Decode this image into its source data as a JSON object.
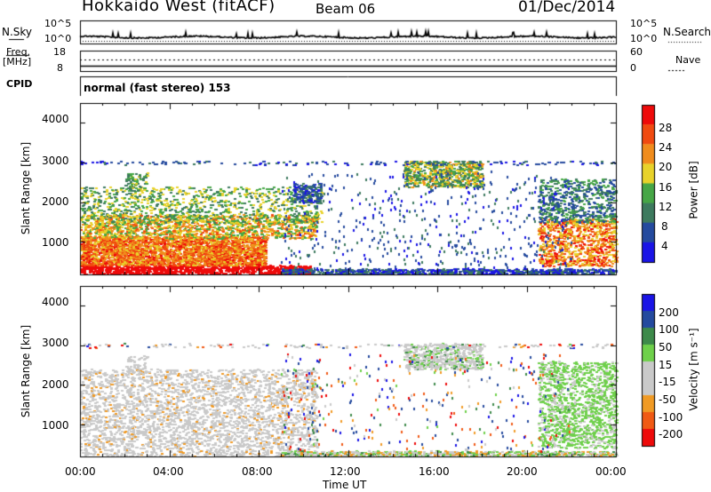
{
  "header": {
    "title": "Hokkaido West (fitACF)",
    "beam": "Beam 06",
    "date": "01/Dec/2014"
  },
  "top_panel": {
    "nsky_label": "N.Sky",
    "nsky_ticks": [
      "10^5",
      "10^0"
    ],
    "nsearch_label": "N.Search",
    "nsearch_ticks": [
      "10^5",
      "10^0"
    ],
    "freq_label_1": "Freq.",
    "freq_label_2": "[MHz]",
    "freq_ticks": [
      "18",
      "8"
    ],
    "nave_label": "Nave",
    "nave_ticks": [
      "60",
      "0"
    ],
    "cpid_label": "CPID",
    "cpid_text": "normal (fast stereo) 153"
  },
  "time_axis": {
    "label": "Time UT",
    "ticks": [
      "00:00",
      "04:00",
      "08:00",
      "12:00",
      "16:00",
      "20:00",
      "00:00"
    ]
  },
  "colors": {
    "power_scale": [
      "#1a14e6",
      "#244a9e",
      "#3d7a5e",
      "#46a646",
      "#e8d22a",
      "#f08c1c",
      "#f04a10",
      "#ee0a0a"
    ],
    "velocity_scale": [
      "#ee0a0a",
      "#f05a14",
      "#f09a24",
      "#c9c9c9",
      "#c9c9c9",
      "#6ed04a",
      "#3d8a4a",
      "#244a9e",
      "#1a14e6"
    ]
  },
  "chart_data": [
    {
      "type": "heatmap",
      "title": "",
      "xlabel": "Time UT",
      "ylabel": "Slant Range [km]",
      "xlim": [
        0,
        24
      ],
      "ylim": [
        180,
        4500
      ],
      "x_ticks": [
        "00:00",
        "04:00",
        "08:00",
        "12:00",
        "16:00",
        "20:00",
        "00:00"
      ],
      "y_ticks": [
        "1000",
        "2000",
        "3000",
        "4000"
      ],
      "colorbar": {
        "label": "Power [dB]",
        "ticks": [
          "4",
          "8",
          "12",
          "16",
          "20",
          "24",
          "28"
        ],
        "range": [
          0,
          32
        ]
      },
      "regions": [
        {
          "t": [
            0,
            10.5
          ],
          "r": [
            200,
            400
          ],
          "value": 28
        },
        {
          "t": [
            0,
            8.5
          ],
          "r": [
            400,
            1100
          ],
          "value": 23
        },
        {
          "t": [
            0,
            10.8
          ],
          "r": [
            1100,
            2400
          ],
          "value": 15
        },
        {
          "t": [
            2,
            3
          ],
          "r": [
            2400,
            2700
          ],
          "value": 12
        },
        {
          "t": [
            14.5,
            18
          ],
          "r": [
            2400,
            3050
          ],
          "value": 14
        },
        {
          "t": [
            20.5,
            24
          ],
          "r": [
            400,
            2600
          ],
          "value": 20
        },
        {
          "t": [
            9,
            24
          ],
          "r": [
            200,
            350
          ],
          "value": 6
        },
        {
          "t": [
            3.5,
            22
          ],
          "r": [
            2950,
            3050
          ],
          "value": 5
        }
      ]
    },
    {
      "type": "heatmap",
      "title": "",
      "xlabel": "Time UT",
      "ylabel": "Slant Range [km]",
      "xlim": [
        0,
        24
      ],
      "ylim": [
        180,
        4500
      ],
      "x_ticks": [
        "00:00",
        "04:00",
        "08:00",
        "12:00",
        "16:00",
        "20:00",
        "00:00"
      ],
      "y_ticks": [
        "1000",
        "2000",
        "3000",
        "4000"
      ],
      "colorbar": {
        "label": "Velocity [m s⁻¹]",
        "ticks": [
          "-200",
          "-100",
          "-50",
          "-15",
          "15",
          "50",
          "100",
          "200"
        ],
        "range": [
          -250,
          250
        ]
      },
      "regions": [
        {
          "t": [
            0,
            10.8
          ],
          "r": [
            200,
            2400
          ],
          "value": 0
        },
        {
          "t": [
            0,
            6
          ],
          "r": [
            700,
            1600
          ],
          "value": -40
        },
        {
          "t": [
            14.5,
            18
          ],
          "r": [
            2400,
            3050
          ],
          "value": 0
        },
        {
          "t": [
            20.5,
            24
          ],
          "r": [
            400,
            2600
          ],
          "value": 40
        },
        {
          "t": [
            9,
            24
          ],
          "r": [
            200,
            350
          ],
          "value": -40
        }
      ]
    }
  ]
}
